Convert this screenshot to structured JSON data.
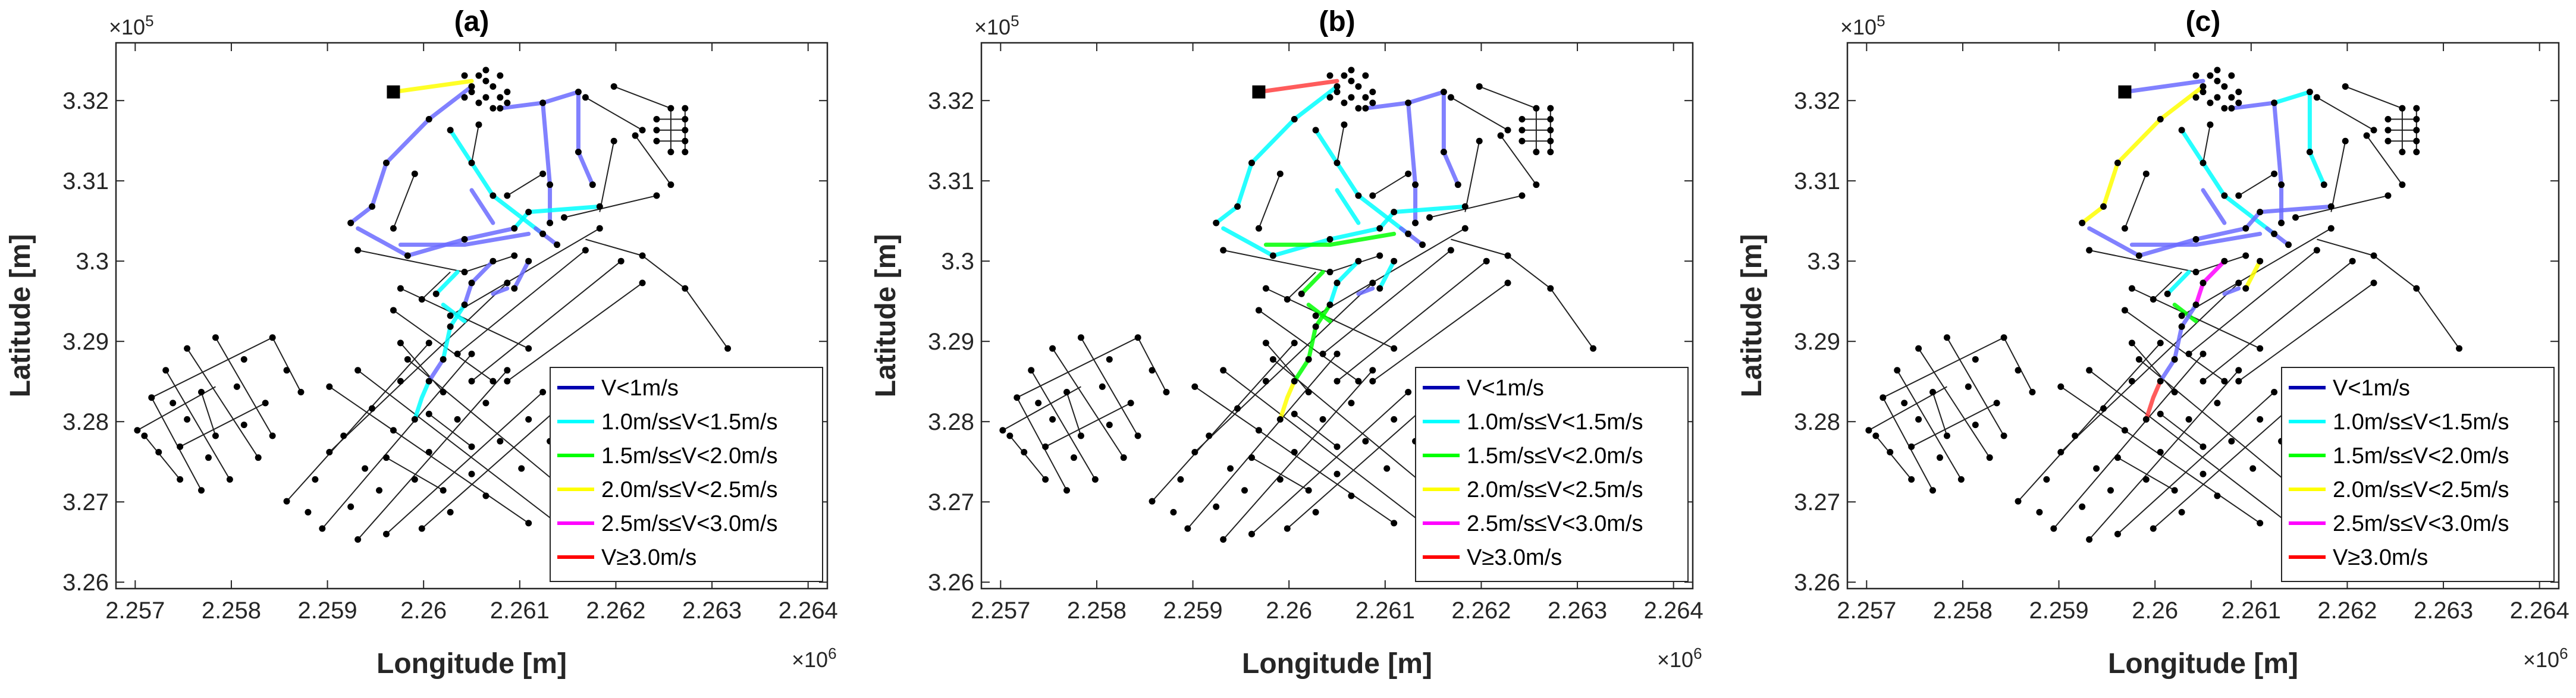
{
  "chart_data": {
    "type": "network-map",
    "x_multiplier": "×10",
    "x_multiplier_exp": "6",
    "y_multiplier": "×10",
    "y_multiplier_exp": "5",
    "xlabel": "Longitude [m]",
    "ylabel": "Latitude [m]",
    "x_ticks": [
      "2.257",
      "2.258",
      "2.259",
      "2.26",
      "2.261",
      "2.262",
      "2.263",
      "2.264"
    ],
    "y_ticks": [
      "3.26",
      "3.27",
      "3.28",
      "3.29",
      "3.3",
      "3.31",
      "3.32"
    ],
    "xlim": [
      2.2568,
      2.2642
    ],
    "ylim": [
      3.2592,
      3.3272
    ],
    "legend": [
      {
        "label": "V<1m/s",
        "color": "#0000b0"
      },
      {
        "label": "1.0m/s≤V<1.5m/s",
        "color": "#00ffff"
      },
      {
        "label": "1.5m/s≤V<2.0m/s",
        "color": "#00ff00"
      },
      {
        "label": "2.0m/s≤V<2.5m/s",
        "color": "#ffff00"
      },
      {
        "label": "2.5m/s≤V<3.0m/s",
        "color": "#ff00ff"
      },
      {
        "label": "V≥3.0m/s",
        "color": "#ff0000"
      }
    ],
    "panels": [
      {
        "title": "(a)",
        "pipe_colors": [
          "#ffff00",
          "#6b6bff",
          "#00ffff",
          "#6b6bff",
          "#6b6bff",
          "#6b6bff",
          "#6b6bff",
          "#00ffff",
          "#6b6bff",
          "#6b6bff",
          "#6b6bff",
          "#00ffff",
          "#00ffff",
          "#6b6bff",
          "#00ffff",
          "#6b6bff",
          "#00ffff",
          "#6b6bff"
        ]
      },
      {
        "title": "(b)",
        "pipe_colors": [
          "#ff4040",
          "#00ffff",
          "#00ffff",
          "#6b6bff",
          "#6b6bff",
          "#00ffff",
          "#00ff00",
          "#00ffff",
          "#6b6bff",
          "#00ffff",
          "#00ffff",
          "#00ff00",
          "#00ff00",
          "#6b6bff",
          "#00ff00",
          "#00ff00",
          "#ffff00",
          "#00ffff"
        ]
      },
      {
        "title": "(c)",
        "pipe_colors": [
          "#6b6bff",
          "#ffff00",
          "#00ffff",
          "#6b6bff",
          "#00ffff",
          "#6b6bff",
          "#6b6bff",
          "#6b6bff",
          "#6b6bff",
          "#ff00ff",
          "#ffff00",
          "#00ffff",
          "#00ff00",
          "#6b6bff",
          "#6b6bff",
          "#6b6bff",
          "#ff4040",
          "#6b6bff"
        ]
      }
    ]
  }
}
